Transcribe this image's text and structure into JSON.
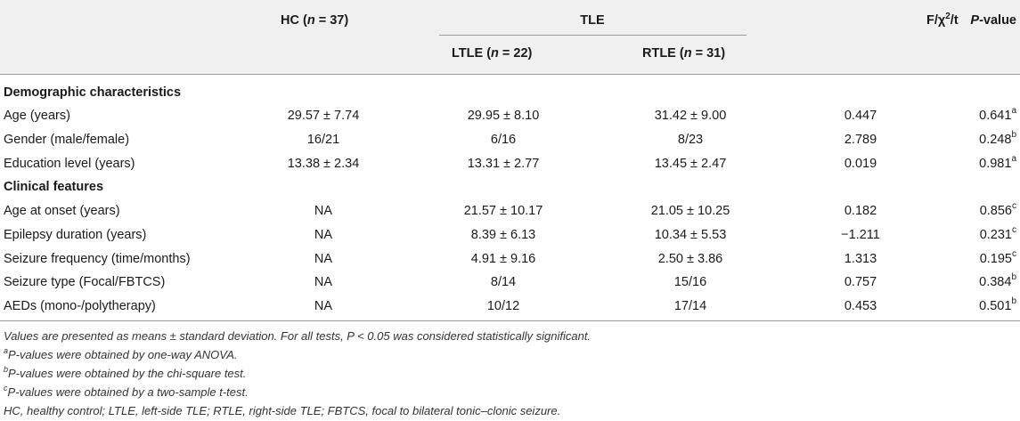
{
  "header": {
    "hc": "HC (",
    "hc_n": "n",
    "hc_val": " = 37)",
    "tle": "TLE",
    "ltle": "LTLE (",
    "ltle_n": "n",
    "ltle_val": " = 22)",
    "rtle": "RTLE (",
    "rtle_n": "n",
    "rtle_val": " = 31)",
    "stat_pre": "F/χ",
    "stat_sup": "2",
    "stat_post": "/t",
    "p_italic": "P",
    "p_rest": "-value"
  },
  "sections": [
    {
      "title": "Demographic characteristics",
      "rows": [
        {
          "label": "Age (years)",
          "hc": "29.57 ± 7.74",
          "ltle": "29.95 ± 8.10",
          "rtle": "31.42 ± 9.00",
          "stat": "0.447",
          "p": "0.641",
          "sup": "a"
        },
        {
          "label": "Gender (male/female)",
          "hc": "16/21",
          "ltle": "6/16",
          "rtle": "8/23",
          "stat": "2.789",
          "p": "0.248",
          "sup": "b"
        },
        {
          "label": "Education level (years)",
          "hc": "13.38 ± 2.34",
          "ltle": "13.31 ± 2.77",
          "rtle": "13.45 ± 2.47",
          "stat": "0.019",
          "p": "0.981",
          "sup": "a"
        }
      ]
    },
    {
      "title": "Clinical features",
      "rows": [
        {
          "label": "Age at onset (years)",
          "hc": "NA",
          "ltle": "21.57 ± 10.17",
          "rtle": "21.05 ± 10.25",
          "stat": "0.182",
          "p": "0.856",
          "sup": "c"
        },
        {
          "label": "Epilepsy duration (years)",
          "hc": "NA",
          "ltle": "8.39 ± 6.13",
          "rtle": "10.34 ± 5.53",
          "stat": "−1.211",
          "p": "0.231",
          "sup": "c"
        },
        {
          "label": "Seizure frequency (time/months)",
          "hc": "NA",
          "ltle": "4.91 ± 9.16",
          "rtle": "2.50 ± 3.86",
          "stat": "1.313",
          "p": "0.195",
          "sup": "c"
        },
        {
          "label": "Seizure type (Focal/FBTCS)",
          "hc": "NA",
          "ltle": "8/14",
          "rtle": "15/16",
          "stat": "0.757",
          "p": "0.384",
          "sup": "b"
        },
        {
          "label": "AEDs (mono-/polytherapy)",
          "hc": "NA",
          "ltle": "10/12",
          "rtle": "17/14",
          "stat": "0.453",
          "p": "0.501",
          "sup": "b"
        }
      ]
    }
  ],
  "footnotes": {
    "main": "Values are presented as means ± standard deviation. For all tests, P < 0.05 was considered statistically significant.",
    "a_mark": "a",
    "a_text": "P-values were obtained by one-way ANOVA.",
    "b_mark": "b",
    "b_text": "P-values were obtained by the chi-square test.",
    "c_mark": "c",
    "c_text": "P-values were obtained by a two-sample t-test.",
    "abbrev": "HC, healthy control; LTLE, left-side TLE; RTLE, right-side TLE; FBTCS, focal to bilateral tonic–clonic seizure."
  }
}
